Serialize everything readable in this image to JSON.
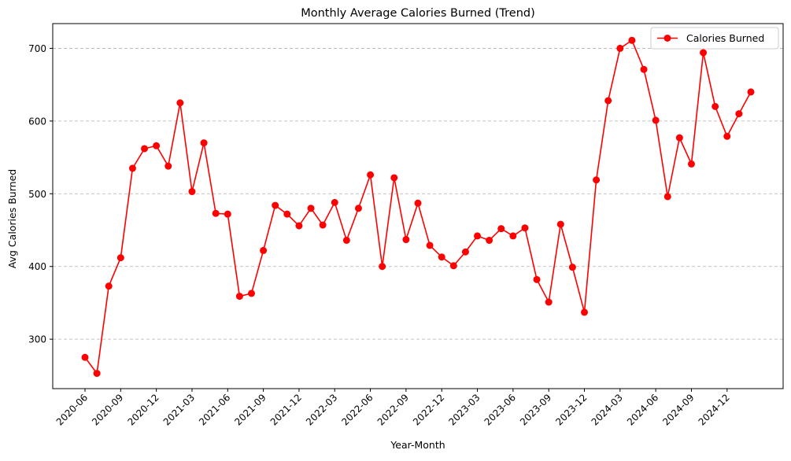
{
  "colors": {
    "series": "#ff0000",
    "grid": "#b0b0b0",
    "axes": "#000000",
    "legend_border": "#cccccc",
    "background": "#ffffff"
  },
  "chart_data": {
    "type": "line",
    "title": "Monthly Average Calories Burned (Trend)",
    "xlabel": "Year-Month",
    "ylabel": "Avg Calories Burned",
    "ylim": [
      232,
      734
    ],
    "yticks": [
      300,
      400,
      500,
      600,
      700
    ],
    "grid": "horizontal dashed",
    "legend_position": "top-right",
    "x": [
      "2020-06",
      "2020-07",
      "2020-08",
      "2020-09",
      "2020-10",
      "2020-11",
      "2020-12",
      "2021-01",
      "2021-02",
      "2021-03",
      "2021-04",
      "2021-05",
      "2021-06",
      "2021-07",
      "2021-08",
      "2021-09",
      "2021-10",
      "2021-11",
      "2021-12",
      "2022-01",
      "2022-02",
      "2022-03",
      "2022-04",
      "2022-05",
      "2022-06",
      "2022-07",
      "2022-08",
      "2022-09",
      "2022-10",
      "2022-11",
      "2022-12",
      "2023-01",
      "2023-02",
      "2023-03",
      "2023-04",
      "2023-05",
      "2023-06",
      "2023-07",
      "2023-08",
      "2023-09",
      "2023-10",
      "2023-11",
      "2023-12",
      "2024-01",
      "2024-02",
      "2024-03",
      "2024-04",
      "2024-05",
      "2024-06",
      "2024-07",
      "2024-08",
      "2024-09",
      "2024-10",
      "2024-11",
      "2024-12",
      "2025-01",
      "2025-02"
    ],
    "xticks": [
      "2020-06",
      "2020-09",
      "2020-12",
      "2021-03",
      "2021-06",
      "2021-09",
      "2021-12",
      "2022-03",
      "2022-06",
      "2022-09",
      "2022-12",
      "2023-03",
      "2023-06",
      "2023-09",
      "2023-12",
      "2024-03",
      "2024-06",
      "2024-09",
      "2024-12"
    ],
    "series": [
      {
        "name": "Calories Burned",
        "color": "#ff0000",
        "marker": "circle",
        "values": [
          275,
          253,
          373,
          412,
          535,
          562,
          566,
          538,
          625,
          503,
          570,
          473,
          472,
          359,
          363,
          422,
          484,
          472,
          456,
          480,
          457,
          488,
          436,
          480,
          526,
          400,
          522,
          437,
          487,
          429,
          413,
          401,
          420,
          442,
          436,
          452,
          442,
          453,
          382,
          351,
          458,
          399,
          337,
          519,
          628,
          700,
          711,
          671,
          601,
          496,
          577,
          541,
          694,
          620,
          579,
          610,
          640
        ]
      }
    ]
  }
}
